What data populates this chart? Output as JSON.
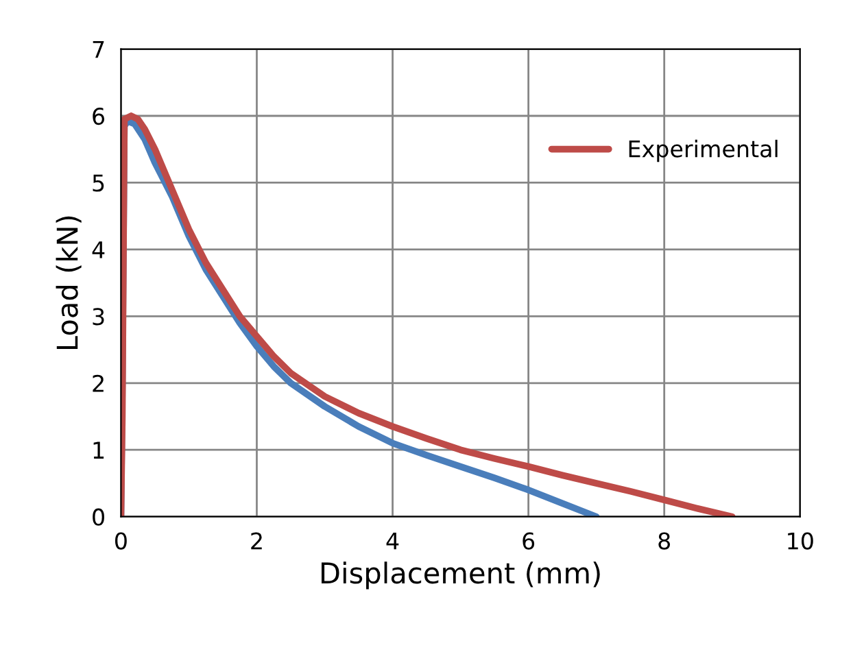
{
  "chart_data": {
    "type": "line",
    "xlabel": "Displacement (mm)",
    "ylabel": "Load (kN)",
    "xlim": [
      0,
      10
    ],
    "xticks": [
      0,
      2,
      4,
      6,
      8,
      10
    ],
    "ylim": [
      0,
      7
    ],
    "yticks": [
      0,
      1,
      2,
      3,
      4,
      5,
      6,
      7
    ],
    "grid": true,
    "legend": "top right",
    "marker": "none",
    "line_style": "solid",
    "series": [
      {
        "color": "#4a7ebb",
        "x": [
          0,
          0.02,
          0.05,
          0.1,
          0.2,
          0.35,
          0.5,
          0.75,
          1,
          1.25,
          1.5,
          1.75,
          2,
          2.25,
          2.5,
          3,
          3.5,
          4,
          4.5,
          5,
          5.5,
          6,
          6.5,
          7
        ],
        "values": [
          0,
          2.0,
          5.85,
          5.92,
          5.88,
          5.65,
          5.3,
          4.8,
          4.2,
          3.7,
          3.3,
          2.9,
          2.55,
          2.25,
          2.0,
          1.65,
          1.35,
          1.1,
          0.92,
          0.75,
          0.58,
          0.4,
          0.2,
          0
        ]
      },
      {
        "name": "Experimental",
        "color": "#be4b48",
        "x": [
          0,
          0.02,
          0.05,
          0.15,
          0.25,
          0.35,
          0.5,
          0.75,
          1,
          1.25,
          1.5,
          1.75,
          2,
          2.25,
          2.5,
          3,
          3.5,
          4,
          4.5,
          5,
          5.5,
          6,
          6.5,
          7,
          7.5,
          8,
          8.5,
          9
        ],
        "values": [
          0,
          1.5,
          5.95,
          6.0,
          5.95,
          5.8,
          5.5,
          4.9,
          4.3,
          3.8,
          3.4,
          3.0,
          2.7,
          2.4,
          2.15,
          1.8,
          1.55,
          1.35,
          1.17,
          1.0,
          0.87,
          0.75,
          0.62,
          0.5,
          0.38,
          0.25,
          0.12,
          0
        ]
      }
    ]
  }
}
